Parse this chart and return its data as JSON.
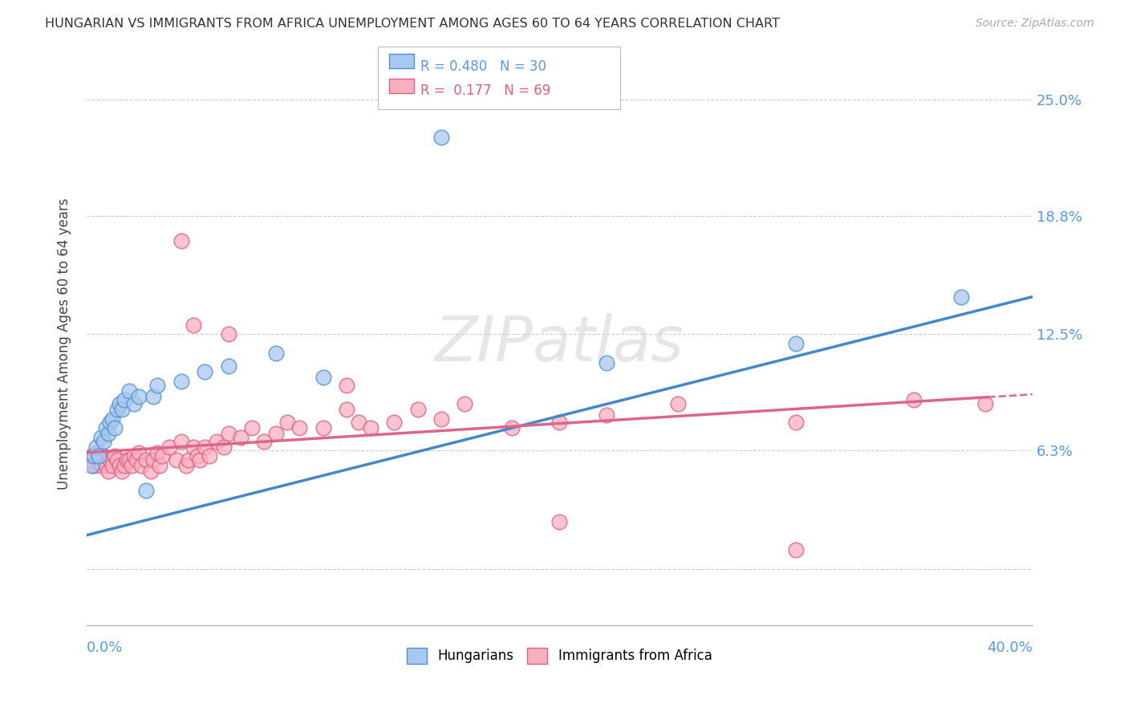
{
  "title": "HUNGARIAN VS IMMIGRANTS FROM AFRICA UNEMPLOYMENT AMONG AGES 60 TO 64 YEARS CORRELATION CHART",
  "source": "Source: ZipAtlas.com",
  "ylabel": "Unemployment Among Ages 60 to 64 years",
  "ytick_vals": [
    0.0,
    0.063,
    0.125,
    0.188,
    0.25
  ],
  "ytick_labels": [
    "",
    "6.3%",
    "12.5%",
    "18.8%",
    "25.0%"
  ],
  "xlim": [
    0.0,
    0.4
  ],
  "ylim": [
    -0.03,
    0.27
  ],
  "watermark": "ZIPatlas",
  "blue_fill": "#A8C8F0",
  "blue_edge": "#5090D0",
  "pink_fill": "#F8B0C0",
  "pink_edge": "#E06080",
  "blue_line": "#4488CC",
  "pink_line": "#DD6688",
  "hungarian_x": [
    0.002,
    0.003,
    0.004,
    0.005,
    0.006,
    0.007,
    0.008,
    0.009,
    0.01,
    0.011,
    0.012,
    0.013,
    0.014,
    0.015,
    0.016,
    0.018,
    0.02,
    0.022,
    0.025,
    0.028,
    0.03,
    0.04,
    0.05,
    0.06,
    0.08,
    0.1,
    0.15,
    0.22,
    0.3,
    0.37
  ],
  "hungarian_y": [
    0.055,
    0.06,
    0.065,
    0.06,
    0.07,
    0.068,
    0.075,
    0.072,
    0.078,
    0.08,
    0.075,
    0.085,
    0.088,
    0.085,
    0.09,
    0.095,
    0.088,
    0.092,
    0.042,
    0.092,
    0.098,
    0.1,
    0.105,
    0.108,
    0.115,
    0.102,
    0.23,
    0.11,
    0.12,
    0.145
  ],
  "africa_x": [
    0.001,
    0.002,
    0.003,
    0.004,
    0.005,
    0.006,
    0.007,
    0.008,
    0.009,
    0.01,
    0.011,
    0.012,
    0.013,
    0.014,
    0.015,
    0.016,
    0.017,
    0.018,
    0.019,
    0.02,
    0.021,
    0.022,
    0.023,
    0.025,
    0.027,
    0.028,
    0.03,
    0.031,
    0.032,
    0.035,
    0.038,
    0.04,
    0.042,
    0.043,
    0.045,
    0.047,
    0.048,
    0.05,
    0.052,
    0.055,
    0.058,
    0.06,
    0.065,
    0.07,
    0.075,
    0.08,
    0.085,
    0.09,
    0.1,
    0.11,
    0.115,
    0.12,
    0.13,
    0.14,
    0.15,
    0.16,
    0.18,
    0.2,
    0.22,
    0.25,
    0.3,
    0.35,
    0.38,
    0.04,
    0.045,
    0.06,
    0.11,
    0.2,
    0.3
  ],
  "africa_y": [
    0.058,
    0.06,
    0.055,
    0.062,
    0.058,
    0.055,
    0.06,
    0.055,
    0.052,
    0.058,
    0.055,
    0.06,
    0.058,
    0.055,
    0.052,
    0.055,
    0.058,
    0.058,
    0.055,
    0.06,
    0.058,
    0.062,
    0.055,
    0.058,
    0.052,
    0.058,
    0.062,
    0.055,
    0.06,
    0.065,
    0.058,
    0.068,
    0.055,
    0.058,
    0.065,
    0.06,
    0.058,
    0.065,
    0.06,
    0.068,
    0.065,
    0.072,
    0.07,
    0.075,
    0.068,
    0.072,
    0.078,
    0.075,
    0.075,
    0.085,
    0.078,
    0.075,
    0.078,
    0.085,
    0.08,
    0.088,
    0.075,
    0.078,
    0.082,
    0.088,
    0.078,
    0.09,
    0.088,
    0.175,
    0.13,
    0.125,
    0.098,
    0.025,
    0.01
  ],
  "bg_color": "#FFFFFF",
  "grid_color": "#CCCCCC",
  "ytick_color": "#5599EE",
  "xtick_color": "#5599EE"
}
